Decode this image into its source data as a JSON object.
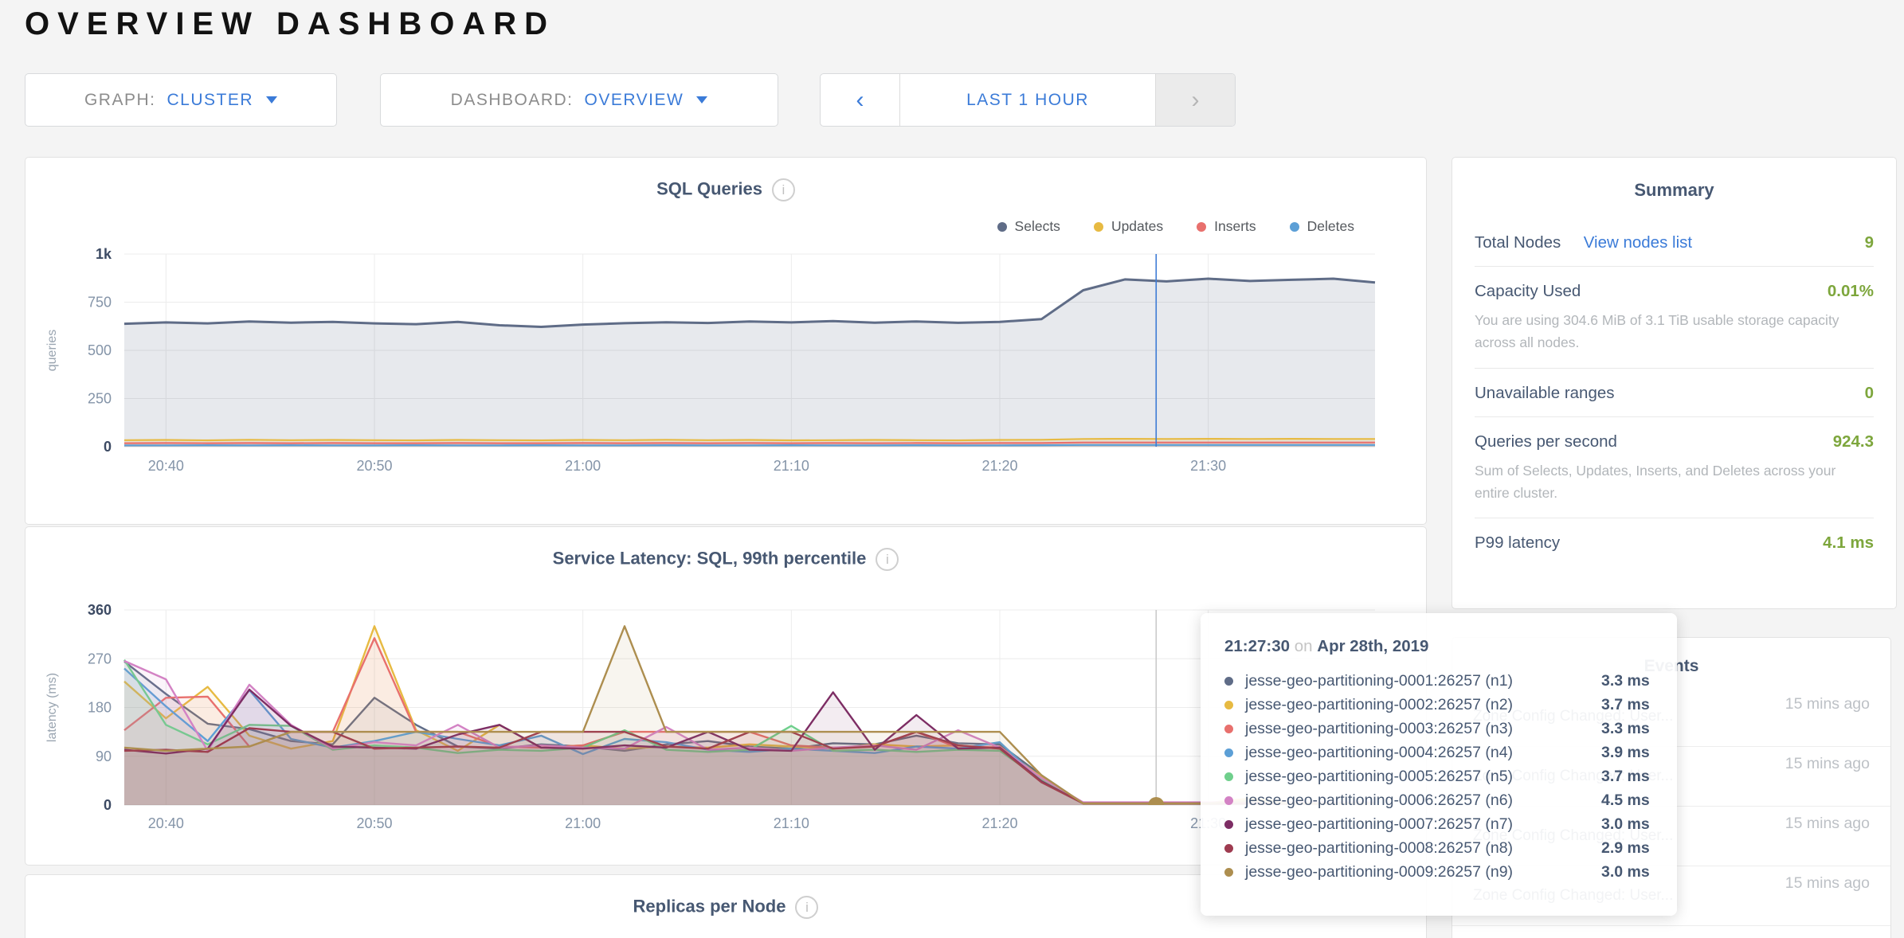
{
  "page": {
    "title": "OVERVIEW DASHBOARD"
  },
  "icons": {
    "info": "i",
    "prev_arrow": "‹",
    "next_arrow": "›"
  },
  "controls": {
    "graph_label": "GRAPH:",
    "graph_value": "CLUSTER",
    "dashboard_label": "DASHBOARD:",
    "dashboard_value": "OVERVIEW",
    "time_range": "LAST 1 HOUR"
  },
  "colors": {
    "accent_blue": "#3B7BD8",
    "value_green": "#7DA63C",
    "heading_slate": "#475872",
    "muted_gray": "#B2B6BA",
    "hover_line_blue": "#3D7BD5"
  },
  "summary": {
    "title": "Summary",
    "rows": [
      {
        "label": "Total Nodes",
        "link": "View nodes list",
        "value": "9"
      },
      {
        "label": "Capacity Used",
        "value": "0.01%",
        "desc": "You are using 304.6 MiB of 3.1 TiB usable storage capacity across all nodes."
      },
      {
        "label": "Unavailable ranges",
        "value": "0"
      },
      {
        "label": "Queries per second",
        "value": "924.3",
        "desc": "Sum of Selects, Updates, Inserts, and Deletes across your entire cluster."
      },
      {
        "label": "P99 latency",
        "value": "4.1 ms"
      }
    ]
  },
  "events": {
    "title": "Events",
    "rows": [
      {
        "label": "Zone Config Changed: User...",
        "time": "15 mins ago"
      },
      {
        "label": "Zone Config Changed: User...",
        "time": "15 mins ago"
      },
      {
        "label": "Zone Config Changed: User...",
        "time": "15 mins ago"
      },
      {
        "label": "Zone Config Changed: User...",
        "time": "15 mins ago"
      }
    ]
  },
  "tooltip": {
    "time": "21:27:30",
    "on": "on",
    "date": "Apr 28th, 2019",
    "rows": [
      {
        "name": "jesse-geo-partitioning-0001:26257 (n1)",
        "value": "3.3 ms",
        "color": "#5F6C87"
      },
      {
        "name": "jesse-geo-partitioning-0002:26257 (n2)",
        "value": "3.7 ms",
        "color": "#E7BA42"
      },
      {
        "name": "jesse-geo-partitioning-0003:26257 (n3)",
        "value": "3.3 ms",
        "color": "#E8706D"
      },
      {
        "name": "jesse-geo-partitioning-0004:26257 (n4)",
        "value": "3.9 ms",
        "color": "#5C9FD6"
      },
      {
        "name": "jesse-geo-partitioning-0005:26257 (n5)",
        "value": "3.7 ms",
        "color": "#6FCF8C"
      },
      {
        "name": "jesse-geo-partitioning-0006:26257 (n6)",
        "value": "4.5 ms",
        "color": "#D382C4"
      },
      {
        "name": "jesse-geo-partitioning-0007:26257 (n7)",
        "value": "3.0 ms",
        "color": "#7D2D64"
      },
      {
        "name": "jesse-geo-partitioning-0008:26257 (n8)",
        "value": "2.9 ms",
        "color": "#9E3B50"
      },
      {
        "name": "jesse-geo-partitioning-0009:26257 (n9)",
        "value": "3.0 ms",
        "color": "#AD8E4F"
      }
    ]
  },
  "replicas": {
    "title": "Replicas per Node"
  },
  "chart_data": [
    {
      "type": "area",
      "title": "SQL Queries",
      "ylabel": "queries",
      "ylim": [
        0,
        1000
      ],
      "ytick_values": [
        0,
        250,
        500,
        750,
        1000
      ],
      "ytick_labels": [
        "0",
        "250",
        "500",
        "750",
        "1k"
      ],
      "xticks": [
        "20:40",
        "20:50",
        "21:00",
        "21:10",
        "21:20",
        "21:30"
      ],
      "legend_position": "top-right",
      "grid": true,
      "hover_time": "21:27:30",
      "hover_x_frac": 0.825,
      "hover_line_color": "#3D7BD5",
      "fill_opacity": 0.15,
      "line_width": 2.2,
      "x": [
        "20:38",
        "20:40",
        "20:42",
        "20:44",
        "20:46",
        "20:48",
        "20:50",
        "20:52",
        "20:54",
        "20:56",
        "20:58",
        "21:00",
        "21:02",
        "21:04",
        "21:06",
        "21:08",
        "21:10",
        "21:12",
        "21:14",
        "21:16",
        "21:18",
        "21:20",
        "21:22",
        "21:24",
        "21:26",
        "21:28",
        "21:30",
        "21:32",
        "21:34",
        "21:36",
        "21:38"
      ],
      "series": [
        {
          "name": "Selects",
          "color": "#5F6C87",
          "width": 3,
          "values": [
            638,
            645,
            640,
            650,
            644,
            648,
            640,
            636,
            648,
            630,
            622,
            634,
            641,
            646,
            642,
            650,
            645,
            652,
            644,
            650,
            643,
            648,
            662,
            812,
            868,
            858,
            872,
            860,
            866,
            872,
            852
          ]
        },
        {
          "name": "Updates",
          "color": "#E7BA42",
          "values": [
            34,
            35,
            33,
            36,
            34,
            35,
            34,
            33,
            35,
            34,
            33,
            35,
            34,
            36,
            34,
            35,
            33,
            34,
            35,
            34,
            33,
            35,
            36,
            40,
            41,
            40,
            41,
            40,
            41,
            40,
            40
          ]
        },
        {
          "name": "Inserts",
          "color": "#E8706D",
          "values": [
            18,
            19,
            18,
            19,
            18,
            19,
            18,
            18,
            19,
            18,
            18,
            19,
            18,
            19,
            18,
            19,
            18,
            19,
            18,
            19,
            18,
            19,
            19,
            22,
            22,
            22,
            22,
            22,
            22,
            22,
            22
          ]
        },
        {
          "name": "Deletes",
          "color": "#5C9FD6",
          "values": [
            7,
            7,
            8,
            7,
            8,
            7,
            7,
            8,
            7,
            7,
            8,
            7,
            7,
            8,
            7,
            7,
            8,
            7,
            7,
            8,
            7,
            7,
            8,
            9,
            9,
            9,
            9,
            9,
            9,
            9,
            9
          ]
        }
      ]
    },
    {
      "type": "line",
      "title": "Service Latency: SQL, 99th percentile",
      "ylabel": "latency (ms)",
      "ylim": [
        0,
        360
      ],
      "ytick_values": [
        0,
        90,
        180,
        270,
        360
      ],
      "ytick_labels": [
        "0",
        "90",
        "180",
        "270",
        "360"
      ],
      "xticks": [
        "20:40",
        "20:50",
        "21:00",
        "21:10",
        "21:20",
        "21:30"
      ],
      "grid": true,
      "hover_time": "21:27:30",
      "hover_x_frac": 0.825,
      "hover_line_color": "#C9C9C9",
      "hover_marker_color": "#AD8E4F",
      "fill_opacity": 0.09,
      "line_width": 2.4,
      "x": [
        "20:38",
        "20:40",
        "20:42",
        "20:44",
        "20:46",
        "20:48",
        "20:50",
        "20:52",
        "20:54",
        "20:56",
        "20:58",
        "21:00",
        "21:02",
        "21:04",
        "21:06",
        "21:08",
        "21:10",
        "21:12",
        "21:14",
        "21:16",
        "21:18",
        "21:20",
        "21:22",
        "21:24",
        "21:26",
        "21:28",
        "21:30",
        "21:32",
        "21:34",
        "21:36",
        "21:38"
      ],
      "series": [
        {
          "name": "jesse-geo-partitioning-0001:26257 (n1)",
          "color": "#5F6C87",
          "values": [
            265,
            205,
            150,
            140,
            118,
            112,
            198,
            148,
            108,
            104,
            112,
            108,
            100,
            112,
            118,
            108,
            104,
            114,
            112,
            128,
            114,
            112,
            55,
            3,
            3,
            3,
            3,
            3,
            3,
            3,
            3
          ]
        },
        {
          "name": "jesse-geo-partitioning-0002:26257 (n2)",
          "color": "#E7BA42",
          "values": [
            228,
            160,
            218,
            128,
            104,
            118,
            330,
            138,
            100,
            148,
            106,
            110,
            104,
            108,
            106,
            112,
            108,
            104,
            112,
            108,
            110,
            104,
            52,
            4,
            4,
            4,
            4,
            12,
            5,
            4,
            4
          ]
        },
        {
          "name": "jesse-geo-partitioning-0003:26257 (n3)",
          "color": "#E8706D",
          "values": [
            138,
            198,
            200,
            108,
            135,
            135,
            308,
            135,
            135,
            108,
            106,
            110,
            135,
            135,
            135,
            135,
            110,
            106,
            108,
            135,
            106,
            108,
            48,
            3,
            3,
            3,
            3,
            3,
            3,
            3,
            3
          ]
        },
        {
          "name": "jesse-geo-partitioning-0004:26257 (n4)",
          "color": "#5C9FD6",
          "values": [
            252,
            182,
            118,
            212,
            122,
            106,
            118,
            135,
            122,
            110,
            128,
            94,
            122,
            116,
            102,
            98,
            104,
            100,
            96,
            108,
            104,
            116,
            44,
            4,
            4,
            4,
            4,
            4,
            4,
            4,
            4
          ]
        },
        {
          "name": "jesse-geo-partitioning-0005:26257 (n5)",
          "color": "#6FCF8C",
          "values": [
            268,
            148,
            112,
            148,
            146,
            102,
            110,
            106,
            96,
            102,
            100,
            106,
            138,
            102,
            98,
            102,
            146,
            100,
            102,
            98,
            102,
            100,
            46,
            4,
            4,
            4,
            4,
            4,
            4,
            4,
            4
          ]
        },
        {
          "name": "jesse-geo-partitioning-0006:26257 (n6)",
          "color": "#D382C4",
          "values": [
            266,
            232,
            100,
            222,
            148,
            104,
            116,
            110,
            148,
            106,
            110,
            106,
            104,
            144,
            102,
            106,
            100,
            106,
            110,
            102,
            138,
            106,
            50,
            5,
            5,
            5,
            5,
            5,
            5,
            5,
            5
          ]
        },
        {
          "name": "jesse-geo-partitioning-0007:26257 (n7)",
          "color": "#7D2D64",
          "values": [
            102,
            95,
            104,
            213,
            146,
            108,
            106,
            104,
            130,
            148,
            106,
            104,
            110,
            106,
            135,
            102,
            100,
            208,
            102,
            166,
            104,
            106,
            44,
            3,
            3,
            3,
            3,
            3,
            3,
            3,
            3
          ]
        },
        {
          "name": "jesse-geo-partitioning-0008:26257 (n8)",
          "color": "#9E3B50",
          "values": [
            100,
            102,
            98,
            142,
            135,
            135,
            104,
            106,
            108,
            106,
            135,
            135,
            135,
            108,
            104,
            135,
            135,
            104,
            108,
            135,
            110,
            104,
            42,
            3,
            3,
            3,
            3,
            3,
            3,
            3,
            3
          ]
        },
        {
          "name": "jesse-geo-partitioning-0009:26257 (n9)",
          "color": "#AD8E4F",
          "values": [
            106,
            100,
            104,
            108,
            135,
            135,
            135,
            135,
            135,
            135,
            135,
            135,
            330,
            135,
            135,
            135,
            135,
            135,
            135,
            135,
            135,
            135,
            55,
            3,
            3,
            3,
            3,
            8,
            3,
            3,
            3
          ]
        }
      ]
    }
  ]
}
